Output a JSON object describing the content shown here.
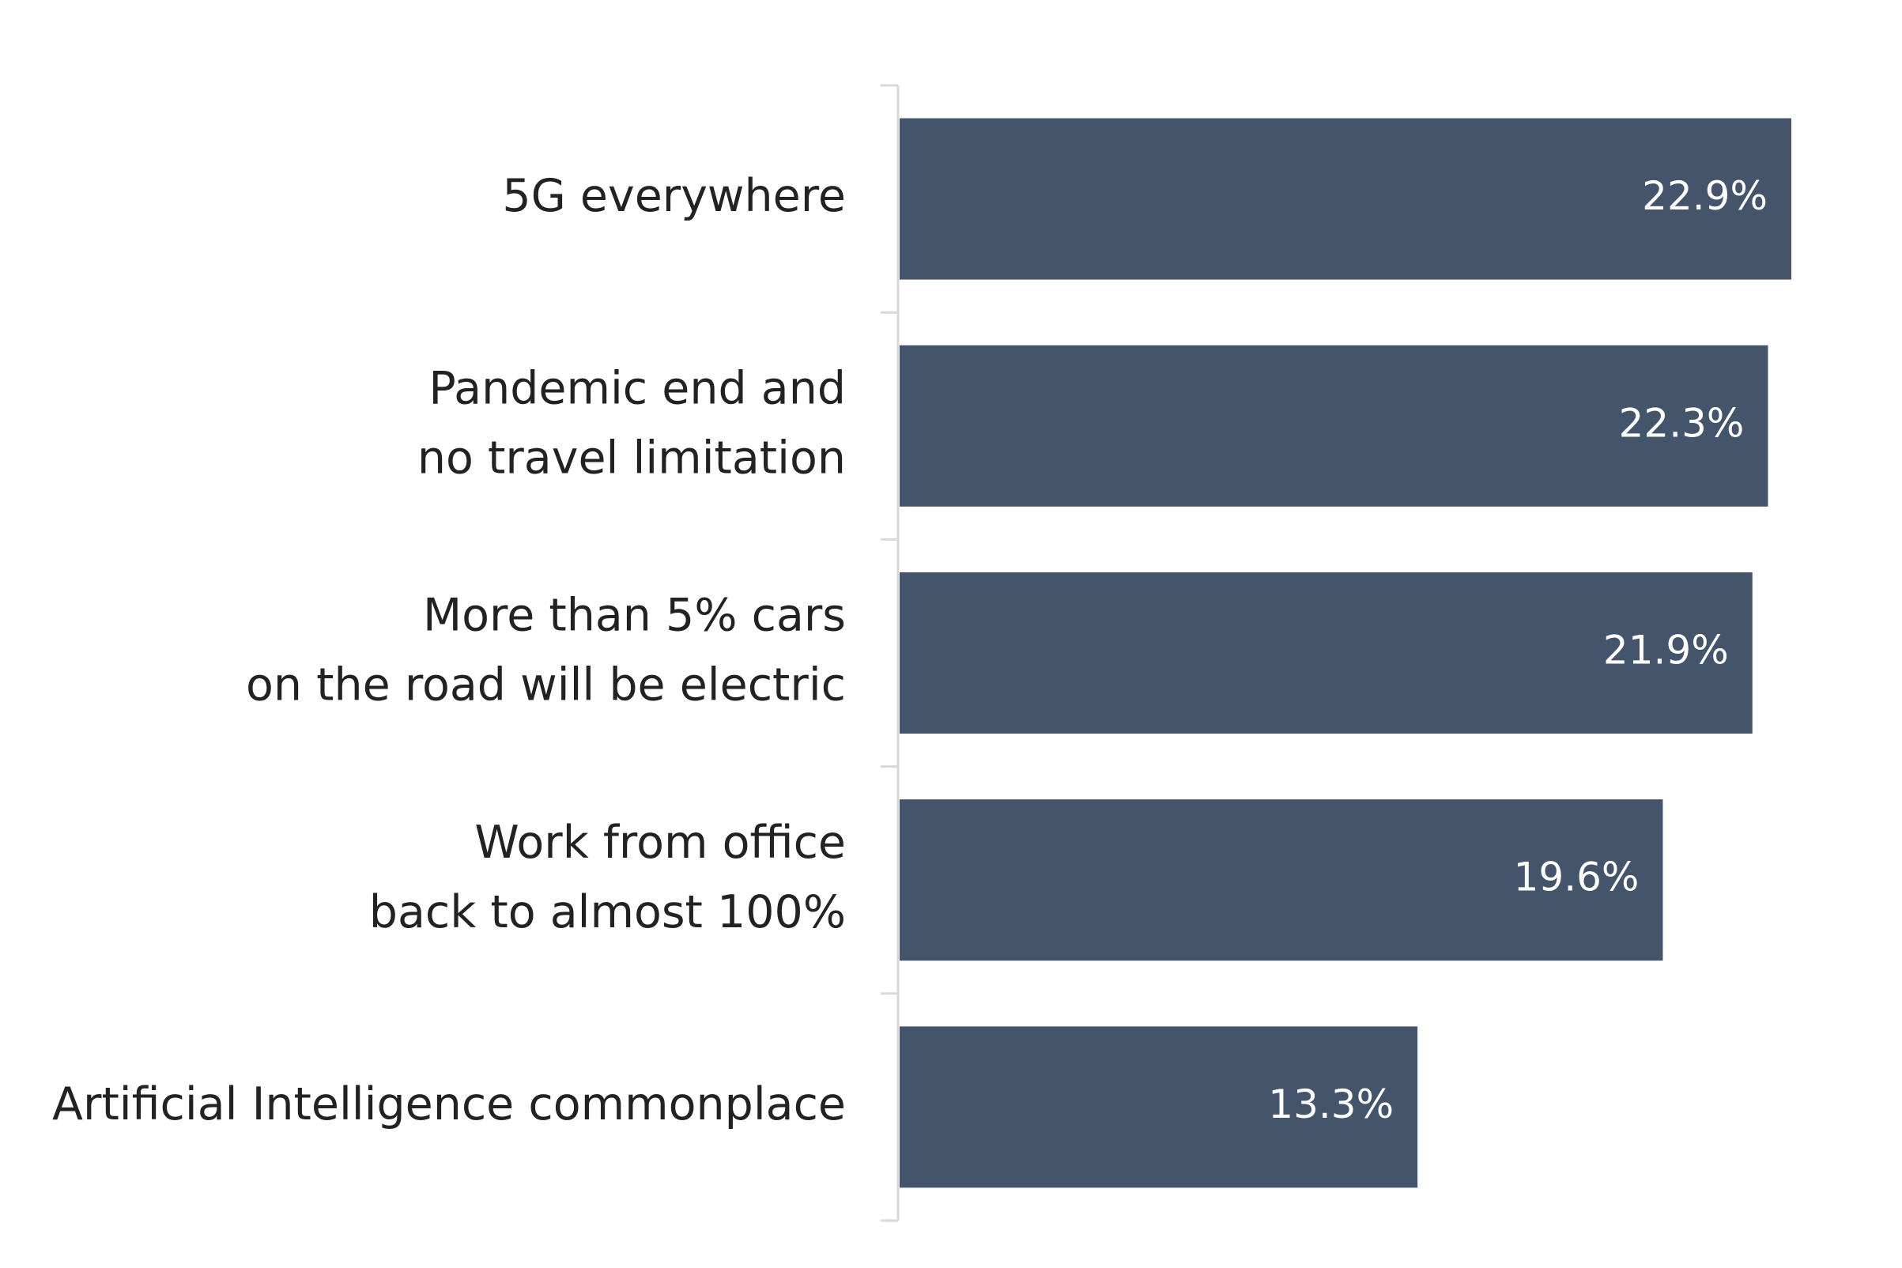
{
  "chart_data": {
    "type": "bar",
    "orientation": "horizontal",
    "categories": [
      [
        "5G everywhere"
      ],
      [
        "Pandemic end and",
        "no travel limitation"
      ],
      [
        "More than 5% cars",
        "on the road will be electric"
      ],
      [
        "Work from office",
        "back to almost 100%"
      ],
      [
        "Artificial Intelligence commonplace"
      ]
    ],
    "values": [
      22.9,
      22.3,
      21.9,
      19.6,
      13.3
    ],
    "value_labels": [
      "22.9%",
      "22.3%",
      "21.9%",
      "19.6%",
      "13.3%"
    ],
    "xlim": [
      0,
      22.9
    ],
    "bar_color": "#44546a",
    "axis_color": "#d9d9d9",
    "label_color": "#222222",
    "value_label_color": "#ffffff",
    "title": "",
    "xlabel": "",
    "ylabel": "",
    "grid": false,
    "legend": "none"
  }
}
